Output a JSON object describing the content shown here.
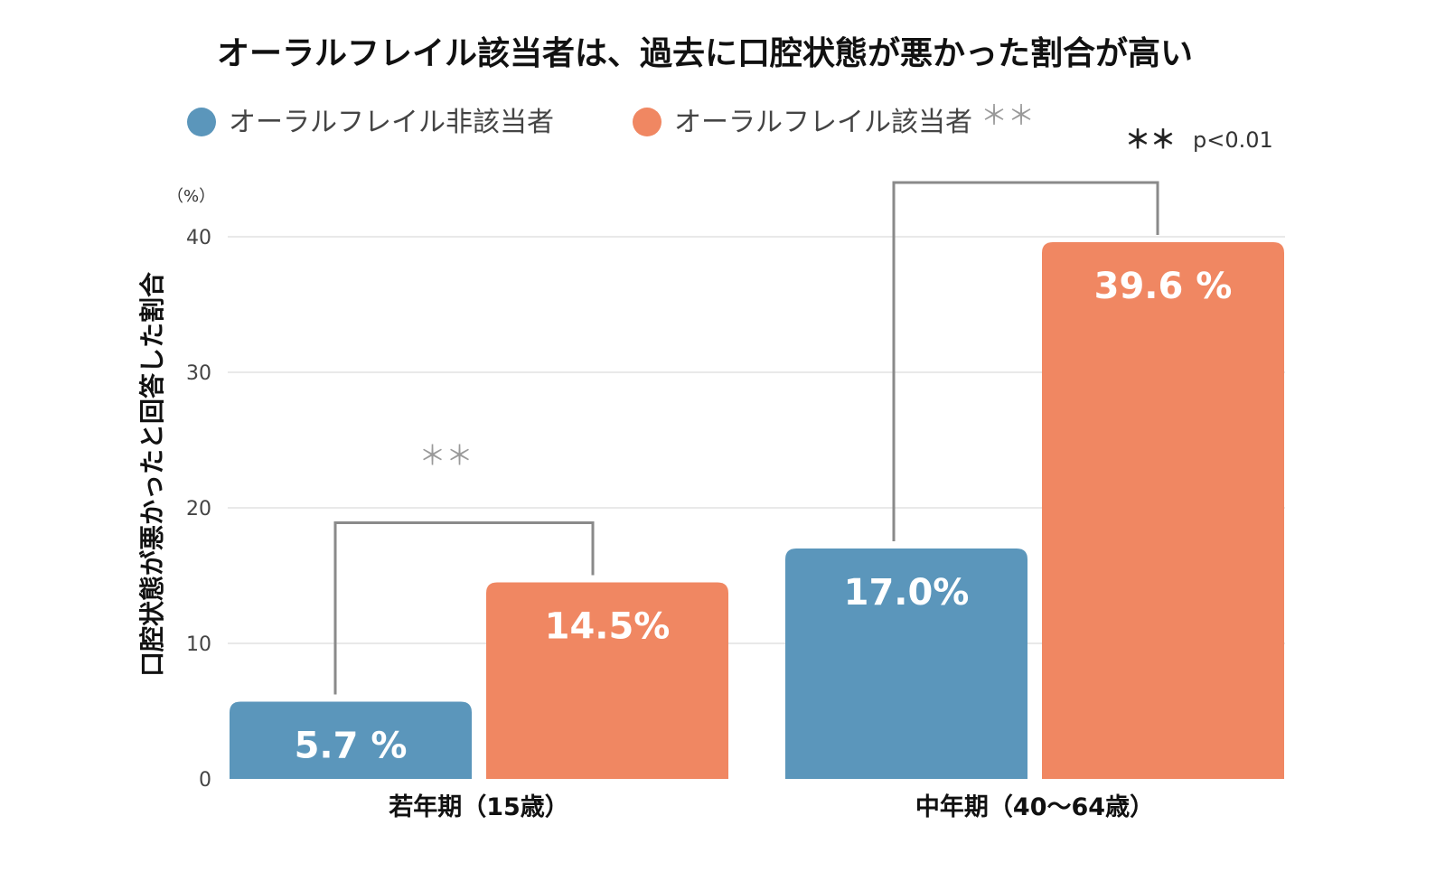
{
  "chart_data": {
    "type": "bar",
    "title": "オーラルフレイル該当者は、過去に口腔状態が悪かった割合が高い",
    "ylabel": "口腔状態が悪かったと回答した割合",
    "yunit": "（%）",
    "ylim": [
      0,
      40
    ],
    "yticks": [
      "0",
      "10",
      "20",
      "30",
      "40"
    ],
    "grid": true,
    "legend_position": "top-left",
    "categories": [
      "若年期（15歳）",
      "中年期（40〜64歳）"
    ],
    "series": [
      {
        "name": "オーラルフレイル非該当者",
        "color": "#5b96bb",
        "values": [
          5.7,
          17.0
        ],
        "labels": [
          "5.7 %",
          "17.0%"
        ]
      },
      {
        "name": "オーラルフレイル該当者",
        "color": "#f08762",
        "values": [
          14.5,
          39.6
        ],
        "labels": [
          "14.5%",
          "39.6 %"
        ]
      }
    ],
    "significance": [
      {
        "category": 0,
        "mark": "＊＊"
      },
      {
        "category": 1,
        "mark": "＊＊"
      }
    ],
    "significance_note": {
      "mark": "＊＊",
      "text": "p<0.01"
    }
  }
}
